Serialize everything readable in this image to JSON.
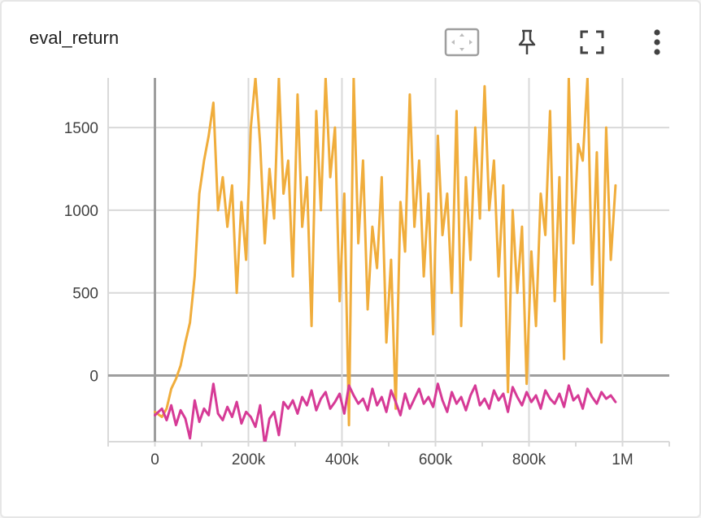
{
  "card": {
    "title": "eval_return"
  },
  "toolbar": {
    "icons": [
      "fit-domain-icon",
      "pin-icon",
      "fullscreen-icon",
      "more-vert-icon"
    ]
  },
  "colors": {
    "orange": "#f0ad3c",
    "magenta": "#d63a96",
    "grid": "#d9d9d9",
    "axis": "#9e9e9e"
  },
  "chart_data": {
    "type": "line",
    "xlim": [
      -100000,
      1100000
    ],
    "ylim": [
      -400,
      1800
    ],
    "xticks": [
      0,
      200000,
      400000,
      600000,
      800000,
      1000000
    ],
    "xtick_labels": [
      "0",
      "200k",
      "400k",
      "600k",
      "800k",
      "1M"
    ],
    "yticks": [
      0,
      500,
      1000,
      1500
    ],
    "ytick_labels": [
      "0",
      "500",
      "1000",
      "1500"
    ],
    "grid": true,
    "series": [
      {
        "color": "#f0ad3c",
        "x": [
          0,
          15000,
          25000,
          35000,
          45000,
          55000,
          65000,
          75000,
          85000,
          95000,
          105000,
          115000,
          125000,
          135000,
          145000,
          155000,
          165000,
          175000,
          185000,
          195000,
          205000,
          215000,
          225000,
          235000,
          245000,
          255000,
          265000,
          275000,
          285000,
          295000,
          305000,
          315000,
          325000,
          335000,
          345000,
          355000,
          365000,
          375000,
          385000,
          395000,
          405000,
          415000,
          425000,
          435000,
          445000,
          455000,
          465000,
          475000,
          485000,
          495000,
          505000,
          515000,
          525000,
          535000,
          545000,
          555000,
          565000,
          575000,
          585000,
          595000,
          605000,
          615000,
          625000,
          635000,
          645000,
          655000,
          665000,
          675000,
          685000,
          695000,
          705000,
          715000,
          725000,
          735000,
          745000,
          755000,
          765000,
          775000,
          785000,
          795000,
          805000,
          815000,
          825000,
          835000,
          845000,
          855000,
          865000,
          875000,
          885000,
          895000,
          905000,
          915000,
          925000,
          935000,
          945000,
          955000,
          965000,
          975000,
          985000
        ],
        "y": [
          -220,
          -250,
          -200,
          -80,
          -20,
          60,
          200,
          320,
          600,
          1100,
          1300,
          1450,
          1650,
          1000,
          1200,
          900,
          1150,
          500,
          1050,
          700,
          1500,
          1800,
          1400,
          800,
          1250,
          950,
          1800,
          1100,
          1300,
          600,
          1700,
          900,
          1200,
          300,
          1600,
          1000,
          1800,
          1200,
          1500,
          450,
          1100,
          -300,
          1800,
          800,
          1300,
          400,
          900,
          650,
          1200,
          200,
          700,
          -200,
          1050,
          750,
          1700,
          900,
          1300,
          600,
          1100,
          250,
          1450,
          850,
          1100,
          500,
          1600,
          300,
          1200,
          700,
          1500,
          950,
          1750,
          1000,
          1300,
          600,
          1150,
          -100,
          1000,
          500,
          900,
          -50,
          750,
          300,
          1100,
          850,
          1600,
          450,
          1200,
          100,
          1800,
          800,
          1400,
          1300,
          1800,
          550,
          1350,
          200,
          1500,
          700,
          1150
        ]
      },
      {
        "color": "#d63a96",
        "x": [
          0,
          15000,
          25000,
          35000,
          45000,
          55000,
          65000,
          75000,
          85000,
          95000,
          105000,
          115000,
          125000,
          135000,
          145000,
          155000,
          165000,
          175000,
          185000,
          195000,
          205000,
          215000,
          225000,
          235000,
          245000,
          255000,
          265000,
          275000,
          285000,
          295000,
          305000,
          315000,
          325000,
          335000,
          345000,
          355000,
          365000,
          375000,
          385000,
          395000,
          405000,
          415000,
          425000,
          435000,
          445000,
          455000,
          465000,
          475000,
          485000,
          495000,
          505000,
          515000,
          525000,
          535000,
          545000,
          555000,
          565000,
          575000,
          585000,
          595000,
          605000,
          615000,
          625000,
          635000,
          645000,
          655000,
          665000,
          675000,
          685000,
          695000,
          705000,
          715000,
          725000,
          735000,
          745000,
          755000,
          765000,
          775000,
          785000,
          795000,
          805000,
          815000,
          825000,
          835000,
          845000,
          855000,
          865000,
          875000,
          885000,
          895000,
          905000,
          915000,
          925000,
          935000,
          945000,
          955000,
          965000,
          975000,
          985000
        ],
        "y": [
          -240,
          -200,
          -270,
          -180,
          -300,
          -210,
          -260,
          -380,
          -150,
          -280,
          -200,
          -240,
          -50,
          -230,
          -270,
          -190,
          -250,
          -160,
          -290,
          -220,
          -250,
          -310,
          -180,
          -420,
          -260,
          -220,
          -360,
          -160,
          -200,
          -150,
          -230,
          -130,
          -180,
          -90,
          -210,
          -140,
          -100,
          -200,
          -160,
          -110,
          -230,
          -60,
          -120,
          -170,
          -140,
          -210,
          -80,
          -180,
          -130,
          -220,
          -90,
          -160,
          -240,
          -110,
          -200,
          -140,
          -80,
          -170,
          -130,
          -190,
          -50,
          -150,
          -220,
          -100,
          -170,
          -130,
          -210,
          -120,
          -60,
          -180,
          -140,
          -200,
          -90,
          -150,
          -110,
          -220,
          -70,
          -130,
          -180,
          -100,
          -160,
          -120,
          -200,
          -90,
          -140,
          -170,
          -110,
          -190,
          -60,
          -150,
          -120,
          -200,
          -80,
          -130,
          -170,
          -100,
          -140,
          -120,
          -160
        ]
      }
    ]
  }
}
